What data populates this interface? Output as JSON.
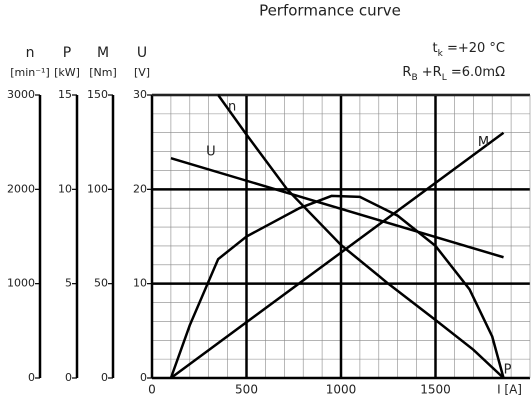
{
  "chart_data": {
    "type": "line",
    "title": "Performance curve",
    "xlabel": "I [A]",
    "xlim": [
      0,
      2000
    ],
    "xticks": [
      0,
      500,
      1000,
      1500
    ],
    "yaxes": [
      {
        "name": "n",
        "unit": "[min⁻¹]",
        "ylim": [
          0,
          3000
        ],
        "yticks": [
          0,
          1000,
          2000,
          3000
        ]
      },
      {
        "name": "P",
        "unit": "[kW]",
        "ylim": [
          0,
          15
        ],
        "yticks": [
          0,
          5,
          10,
          15
        ]
      },
      {
        "name": "M",
        "unit": "[Nm]",
        "ylim": [
          0,
          150
        ],
        "yticks": [
          0,
          50,
          100,
          150
        ]
      },
      {
        "name": "U",
        "unit": "[V]",
        "ylim": [
          0,
          30
        ],
        "yticks": [
          0,
          10,
          20,
          30
        ]
      }
    ],
    "annotations": [
      [
        "t",
        "k",
        " =+20 °C"
      ],
      [
        "R",
        "B",
        " +R",
        "L",
        " =6.0mΩ"
      ]
    ],
    "grid": true,
    "series": [
      {
        "name": "n",
        "axis": 0,
        "color": "#000000",
        "x": [
          350,
          500,
          715,
          1000,
          1250,
          1500,
          1700,
          1860
        ],
        "values": [
          3000,
          2580,
          2000,
          1410,
          1000,
          615,
          300,
          0
        ]
      },
      {
        "name": "U",
        "axis": 3,
        "color": "#000000",
        "x": [
          100,
          1860
        ],
        "values": [
          23.3,
          12.8
        ]
      },
      {
        "name": "M",
        "axis": 2,
        "color": "#000000",
        "x": [
          100,
          1860
        ],
        "values": [
          0,
          130
        ]
      },
      {
        "name": "P",
        "axis": 1,
        "color": "#000000",
        "x": [
          100,
          200,
          350,
          500,
          780,
          950,
          1100,
          1300,
          1500,
          1680,
          1800,
          1860
        ],
        "values": [
          0,
          2.8,
          6.3,
          7.5,
          9,
          9.65,
          9.6,
          8.6,
          7,
          4.7,
          2.2,
          0
        ]
      }
    ]
  }
}
